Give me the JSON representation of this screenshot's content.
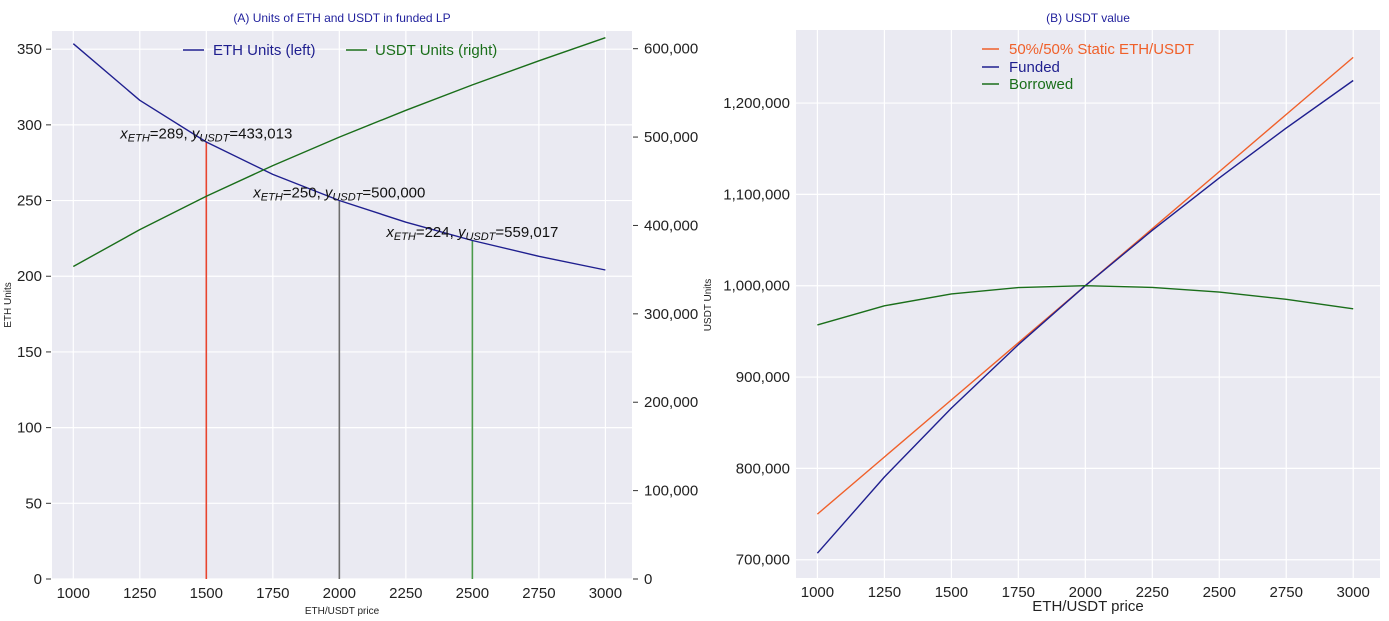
{
  "chart_data": [
    {
      "type": "line",
      "title": "(A) Units of ETH and USDT in funded LP",
      "xlabel": "ETH/USDT price",
      "ylabel": "ETH Units",
      "ylabel_right": "USDT Units",
      "xlim": [
        920,
        3100
      ],
      "ylim": [
        0,
        362
      ],
      "ylim_right": [
        0,
        620000
      ],
      "x_ticks": [
        1000,
        1250,
        1500,
        1750,
        2000,
        2250,
        2500,
        2750,
        3000
      ],
      "x_tick_labels": [
        "1000",
        "1250",
        "1500",
        "1750",
        "2000",
        "2250",
        "2500",
        "2750",
        "3000"
      ],
      "y_ticks": [
        0,
        50,
        100,
        150,
        200,
        250,
        300,
        350
      ],
      "y_tick_labels": [
        "0",
        "50",
        "100",
        "150",
        "200",
        "250",
        "300",
        "350"
      ],
      "y_right_ticks": [
        0,
        100000,
        200000,
        300000,
        400000,
        500000,
        600000
      ],
      "y_right_tick_labels": [
        "0",
        "100,000",
        "200,000",
        "300,000",
        "400,000",
        "500,000",
        "600,000"
      ],
      "grid": true,
      "legend_placement": "top-center",
      "series": [
        {
          "name": "ETH Units (left)",
          "axis": "left",
          "color": "#1f1f8f",
          "x": [
            1000,
            1250,
            1500,
            1750,
            2000,
            2250,
            2500,
            2750,
            3000
          ],
          "values": [
            353.6,
            316.2,
            288.7,
            267.3,
            250.0,
            235.7,
            223.6,
            213.2,
            204.1
          ]
        },
        {
          "name": "USDT Units (right)",
          "axis": "right",
          "color": "#1a6e1a",
          "x": [
            1000,
            1250,
            1500,
            1750,
            2000,
            2250,
            2500,
            2750,
            3000
          ],
          "values": [
            353553,
            395285,
            433013,
            467707,
            500000,
            530330,
            559017,
            586302,
            612372
          ]
        }
      ],
      "vlines": [
        {
          "x": 1500,
          "y_top": 289,
          "color": "#e8442e"
        },
        {
          "x": 2000,
          "y_top": 250,
          "color": "#6e6e6e"
        },
        {
          "x": 2500,
          "y_top": 224,
          "color": "#4a9a4a"
        }
      ],
      "annotations": [
        {
          "x": 1500,
          "y": 289,
          "eth": "289",
          "usdt": "433,013"
        },
        {
          "x": 2000,
          "y": 250,
          "eth": "250",
          "usdt": "500,000"
        },
        {
          "x": 2500,
          "y": 224,
          "eth": "224",
          "usdt": "559,017"
        }
      ],
      "annotation_symbols": {
        "x": "x",
        "y": "y",
        "x_sub": "ETH",
        "y_sub": "USDT"
      }
    },
    {
      "type": "line",
      "title": "(B) USDT value",
      "xlabel": "ETH/USDT price",
      "ylabel": "",
      "xlim": [
        920,
        3100
      ],
      "ylim": [
        680000,
        1280000
      ],
      "x_ticks": [
        1000,
        1250,
        1500,
        1750,
        2000,
        2250,
        2500,
        2750,
        3000
      ],
      "x_tick_labels": [
        "1000",
        "1250",
        "1500",
        "1750",
        "2000",
        "2250",
        "2500",
        "2750",
        "3000"
      ],
      "y_ticks": [
        700000,
        800000,
        900000,
        1000000,
        1100000,
        1200000
      ],
      "y_tick_labels": [
        "700,000",
        "800,000",
        "900,000",
        "1,000,000",
        "1,100,000",
        "1,200,000"
      ],
      "grid": true,
      "legend_placement": "top-center",
      "series": [
        {
          "name": "50%/50% Static ETH/USDT",
          "color": "#f0602a",
          "x": [
            1000,
            1250,
            1500,
            1750,
            2000,
            2250,
            2500,
            2750,
            3000
          ],
          "values": [
            750000,
            812500,
            875000,
            937500,
            1000000,
            1062500,
            1125000,
            1187500,
            1250000
          ]
        },
        {
          "name": "Funded",
          "color": "#1f1f8f",
          "x": [
            1000,
            1250,
            1500,
            1750,
            2000,
            2250,
            2500,
            2750,
            3000
          ],
          "values": [
            707107,
            790569,
            866025,
            935414,
            1000000,
            1060660,
            1118034,
            1172604,
            1224745
          ]
        },
        {
          "name": "Borrowed",
          "color": "#1a6e1a",
          "x": [
            1000,
            1250,
            1500,
            1750,
            2000,
            2250,
            2500,
            2750,
            3000
          ],
          "values": [
            957107,
            978069,
            991025,
            997914,
            1000000,
            998160,
            993034,
            985104,
            974745
          ]
        }
      ]
    }
  ]
}
